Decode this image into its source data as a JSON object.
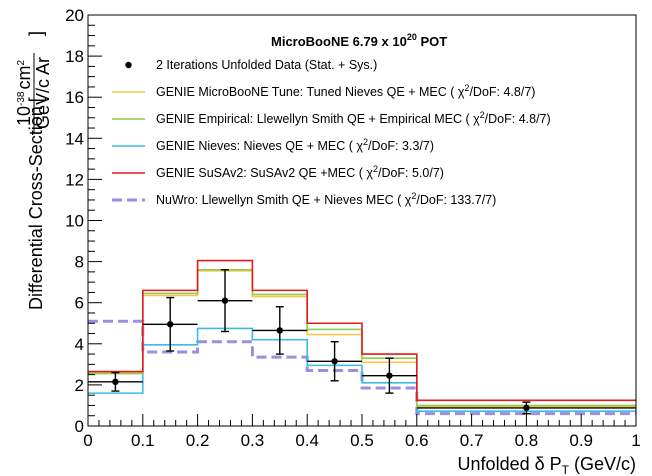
{
  "chart_data": {
    "type": "line",
    "title": "MicroBooNE 6.79 x 10",
    "title_exponent": "20",
    "title_suffix": " POT",
    "xlabel_prefix": "Unfolded ",
    "xlabel_symbol": "δ P",
    "xlabel_sub": "T",
    "xlabel_suffix": " (GeV/c)",
    "ylabel_main": "Differential Cross-Section",
    "ylabel_num": "10",
    "ylabel_num_exp": "-38",
    "ylabel_num_suffix": "cm",
    "ylabel_num_suffix_exp": "2",
    "ylabel_den": "GeV/c Ar",
    "xlim": [
      0,
      1
    ],
    "ylim": [
      0,
      20
    ],
    "x_ticks": [
      {
        "v": 0,
        "label": "0"
      },
      {
        "v": 0.1,
        "label": "0.1"
      },
      {
        "v": 0.2,
        "label": "0.2"
      },
      {
        "v": 0.3,
        "label": "0.3"
      },
      {
        "v": 0.4,
        "label": "0.4"
      },
      {
        "v": 0.5,
        "label": "0.5"
      },
      {
        "v": 0.6,
        "label": "0.6"
      },
      {
        "v": 0.7,
        "label": "0.7"
      },
      {
        "v": 0.8,
        "label": "0.8"
      },
      {
        "v": 0.9,
        "label": "0.9"
      },
      {
        "v": 1,
        "label": "1"
      }
    ],
    "y_ticks": [
      {
        "v": 0,
        "label": "0"
      },
      {
        "v": 2,
        "label": "2"
      },
      {
        "v": 4,
        "label": "4"
      },
      {
        "v": 6,
        "label": "6"
      },
      {
        "v": 8,
        "label": "8"
      },
      {
        "v": 10,
        "label": "10"
      },
      {
        "v": 12,
        "label": "12"
      },
      {
        "v": 14,
        "label": "14"
      },
      {
        "v": 16,
        "label": "16"
      },
      {
        "v": 18,
        "label": "18"
      },
      {
        "v": 20,
        "label": "20"
      }
    ],
    "bin_edges": [
      0,
      0.1,
      0.2,
      0.3,
      0.4,
      0.5,
      0.6,
      1.0
    ],
    "data_points": {
      "name": "2 Iterations Unfolded Data (Stat. + Sys.)",
      "x": [
        0.05,
        0.15,
        0.25,
        0.35,
        0.45,
        0.55,
        0.8
      ],
      "y": [
        2.15,
        4.95,
        6.1,
        4.65,
        3.15,
        2.45,
        0.88
      ],
      "y_err": [
        0.45,
        1.3,
        1.5,
        1.15,
        0.95,
        0.85,
        0.28
      ],
      "x_err": [
        0.05,
        0.05,
        0.05,
        0.05,
        0.05,
        0.05,
        0.2
      ]
    },
    "series": [
      {
        "name": "GENIE MicroBooNE Tune: Tuned Nieves QE + MEC (  χ",
        "chi": "2",
        "chi_tail": "/DoF:  4.8/7)",
        "color": "#ffc34d",
        "dashed": false,
        "values": [
          2.6,
          6.35,
          7.55,
          6.3,
          4.45,
          3.1,
          0.95
        ]
      },
      {
        "name": "GENIE Empirical: Llewellyn Smith QE + Empirical MEC (  χ",
        "chi": "2",
        "chi_tail": "/DoF:  4.8/7)",
        "color": "#8fcc4f",
        "dashed": false,
        "values": [
          2.55,
          6.45,
          7.6,
          6.4,
          4.7,
          3.3,
          1.0
        ]
      },
      {
        "name": "GENIE Nieves: Nieves QE + MEC (  χ",
        "chi": "2",
        "chi_tail": "/DoF:  3.3/7)",
        "color": "#3cbbe6",
        "dashed": false,
        "values": [
          1.6,
          3.95,
          4.75,
          4.2,
          2.95,
          2.1,
          0.72
        ]
      },
      {
        "name": "GENIE SuSAv2: SuSAv2 QE +MEC (  χ",
        "chi": "2",
        "chi_tail": "/DoF:  5.0/7)",
        "color": "#e41a1c",
        "dashed": false,
        "values": [
          2.65,
          6.6,
          8.05,
          6.6,
          5.0,
          3.5,
          1.25
        ]
      },
      {
        "name": "NuWro: Llewellyn Smith QE + Nieves MEC (  χ",
        "chi": "2",
        "chi_tail": "/DoF: 133.7/7)",
        "color": "#9b8fe3",
        "dashed": true,
        "values": [
          5.1,
          3.6,
          4.1,
          3.35,
          2.7,
          1.85,
          0.6
        ]
      }
    ],
    "grid": false,
    "legend_position": "top-right"
  }
}
